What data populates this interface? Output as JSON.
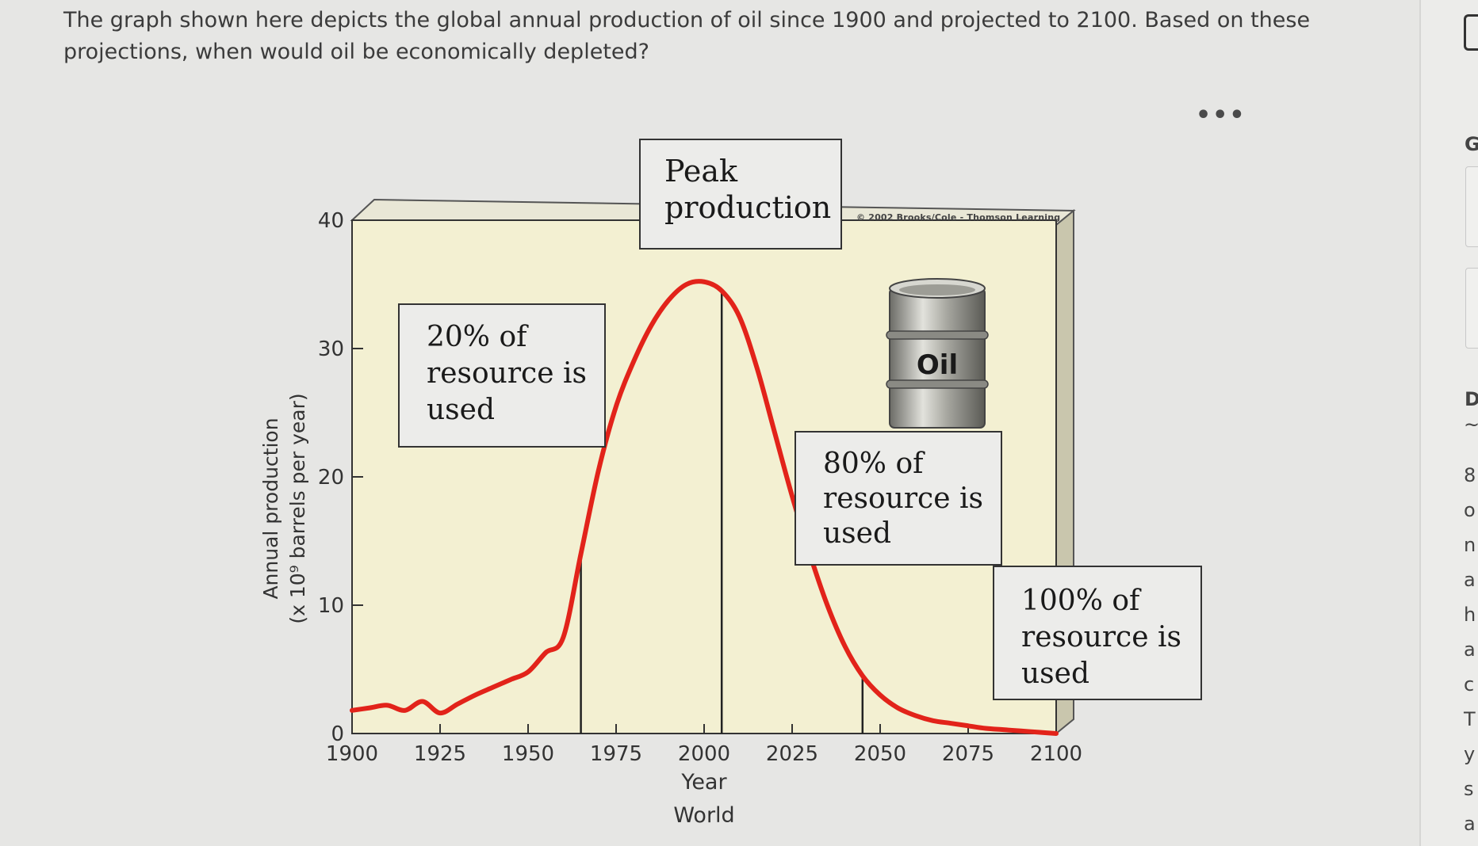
{
  "question": {
    "text": "The graph shown here depicts the global annual production of oil since 1900 and projected to 2100. Based on these projections, when would oil be economically depleted?"
  },
  "menu": {
    "more_label": "•••"
  },
  "right_panel": {
    "letters": [
      "G",
      "D",
      "~",
      "8",
      "o",
      "n",
      "a",
      "h",
      "a",
      "c",
      "T",
      "y",
      "s",
      "a"
    ]
  },
  "callouts": {
    "peak": [
      "Peak",
      "production"
    ],
    "p20": [
      "20% of",
      "resource is",
      "used"
    ],
    "p80": [
      "80% of",
      "resource is",
      "used"
    ],
    "p100": [
      "100% of",
      "resource is",
      "used"
    ]
  },
  "copyright": "© 2002 Brooks/Cole - Thomson Learning",
  "barrel_label": "Oil",
  "colors": {
    "curve": "#e2231a",
    "plot_bg": "#f3f0d2",
    "frame_side": "#c9c6ad"
  },
  "chart_data": {
    "type": "line",
    "title": "",
    "subtitle": "World",
    "xlabel": "Year",
    "ylabel_line1": "Annual production",
    "ylabel_line2": "(x 10⁹ barrels per year)",
    "xlim": [
      1900,
      2100
    ],
    "ylim": [
      0,
      40
    ],
    "x_ticks": [
      1900,
      1925,
      1950,
      1975,
      2000,
      2025,
      2050,
      2075,
      2100
    ],
    "y_ticks": [
      0,
      10,
      20,
      30,
      40
    ],
    "grid": false,
    "series": [
      {
        "x": [
          1900,
          1905,
          1910,
          1915,
          1920,
          1925,
          1930,
          1935,
          1940,
          1945,
          1950,
          1955,
          1960,
          1965,
          1970,
          1975,
          1980,
          1985,
          1990,
          1995,
          2000,
          2005,
          2010,
          2015,
          2020,
          2025,
          2030,
          2035,
          2040,
          2045,
          2050,
          2055,
          2060,
          2065,
          2070,
          2075,
          2080,
          2085,
          2090,
          2095,
          2100
        ],
        "y": [
          1.8,
          2.0,
          2.2,
          1.8,
          2.5,
          1.6,
          2.3,
          3.0,
          3.6,
          4.2,
          4.8,
          6.3,
          7.5,
          14.0,
          20.5,
          25.5,
          29.0,
          31.8,
          33.8,
          35.0,
          35.2,
          34.5,
          32.5,
          28.5,
          23.5,
          18.5,
          14.0,
          10.0,
          6.8,
          4.5,
          3.0,
          2.0,
          1.4,
          1.0,
          0.8,
          0.6,
          0.4,
          0.3,
          0.2,
          0.1,
          0.0
        ]
      }
    ],
    "markers": [
      {
        "label": "20% of resource is used",
        "x": 1965
      },
      {
        "label": "Peak production",
        "x": 2005
      },
      {
        "label": "80% of resource is used",
        "x": 2045
      },
      {
        "label": "100% of resource is used",
        "x": 2100
      }
    ]
  }
}
